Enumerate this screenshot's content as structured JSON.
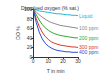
{
  "chart_data": {
    "type": "line",
    "title": "Dissolved oxygen (% sat.)",
    "x_label": "T in min",
    "y_label": "DO %",
    "x": [
      0,
      2,
      4,
      6,
      8,
      10,
      12,
      14,
      16,
      18,
      20,
      22,
      24,
      26,
      28,
      30
    ],
    "series": [
      {
        "name": "Liquid",
        "color": "#22b8d8",
        "values": [
          100,
          98,
          96,
          95,
          94,
          93,
          92,
          91,
          90,
          90,
          89,
          88,
          88,
          87,
          87,
          86
        ]
      },
      {
        "name": "100 ppm",
        "color": "#8a8a8a",
        "values": [
          100,
          94,
          88,
          83,
          79,
          75,
          72,
          70,
          68,
          66,
          65,
          64,
          63,
          62,
          61,
          60
        ]
      },
      {
        "name": "200 ppm",
        "color": "#2ea82e",
        "values": [
          100,
          88,
          77,
          68,
          61,
          56,
          52,
          49,
          47,
          45,
          44,
          43,
          42,
          41,
          40,
          40
        ]
      },
      {
        "name": "300 ppm",
        "color": "#d03a2a",
        "values": [
          100,
          80,
          64,
          52,
          43,
          37,
          32,
          29,
          27,
          25,
          24,
          23,
          22,
          21,
          21,
          20
        ]
      },
      {
        "name": "400 ppm",
        "color": "#2a4fd0",
        "values": [
          100,
          72,
          52,
          38,
          29,
          23,
          19,
          16,
          14,
          13,
          12,
          11,
          11,
          10,
          10,
          10
        ]
      }
    ],
    "xlim": [
      0,
      30
    ],
    "xticks": [
      0,
      10,
      20,
      30
    ],
    "ylim": [
      0,
      100
    ],
    "yticks": [
      0,
      20,
      40,
      60,
      80,
      100
    ],
    "grid": false
  }
}
